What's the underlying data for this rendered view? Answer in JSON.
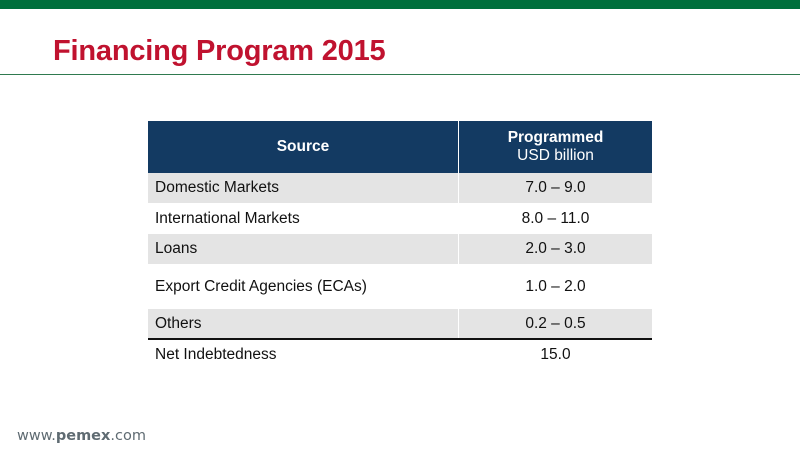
{
  "slide": {
    "title": "Financing Program 2015"
  },
  "table": {
    "header": {
      "source": "Source",
      "programmed": "Programmed",
      "unit": "USD billion"
    },
    "rows": [
      {
        "source": "Domestic Markets",
        "value": "7.0 – 9.0"
      },
      {
        "source": "International Markets",
        "value": "8.0 – 11.0"
      },
      {
        "source": "Loans",
        "value": "2.0 – 3.0"
      },
      {
        "source": "Export Credit Agencies (ECAs)",
        "value": "1.0 – 2.0"
      },
      {
        "source": "Others",
        "value": "0.2 – 0.5"
      },
      {
        "source": "Net Indebtedness",
        "value": "15.0"
      }
    ]
  },
  "footer": {
    "prefix": "www.",
    "brand": "pemex",
    "suffix": ".com"
  },
  "colors": {
    "top_bar": "#006f3c",
    "title": "#c0122f",
    "header_bg": "#133a62",
    "row_shade": "#e4e4e4"
  }
}
